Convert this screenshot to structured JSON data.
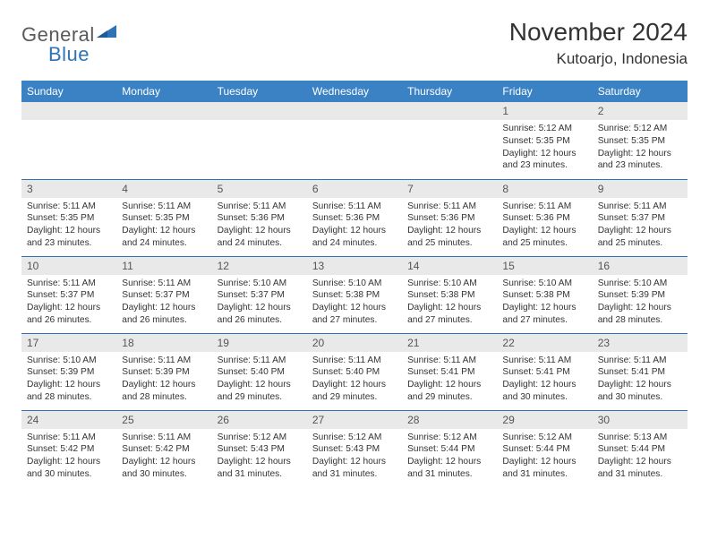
{
  "logo": {
    "text1": "General",
    "text2": "Blue",
    "triangle_color": "#2e74b5"
  },
  "title": "November 2024",
  "location": "Kutoarjo, Indonesia",
  "colors": {
    "header_bg": "#3b82c4",
    "header_fg": "#ffffff",
    "daynum_bg": "#e9e9e9",
    "rule": "#2e74b5"
  },
  "day_headers": [
    "Sunday",
    "Monday",
    "Tuesday",
    "Wednesday",
    "Thursday",
    "Friday",
    "Saturday"
  ],
  "weeks": [
    [
      null,
      null,
      null,
      null,
      null,
      {
        "n": "1",
        "sr": "5:12 AM",
        "ss": "5:35 PM",
        "dl": "12 hours and 23 minutes."
      },
      {
        "n": "2",
        "sr": "5:12 AM",
        "ss": "5:35 PM",
        "dl": "12 hours and 23 minutes."
      }
    ],
    [
      {
        "n": "3",
        "sr": "5:11 AM",
        "ss": "5:35 PM",
        "dl": "12 hours and 23 minutes."
      },
      {
        "n": "4",
        "sr": "5:11 AM",
        "ss": "5:35 PM",
        "dl": "12 hours and 24 minutes."
      },
      {
        "n": "5",
        "sr": "5:11 AM",
        "ss": "5:36 PM",
        "dl": "12 hours and 24 minutes."
      },
      {
        "n": "6",
        "sr": "5:11 AM",
        "ss": "5:36 PM",
        "dl": "12 hours and 24 minutes."
      },
      {
        "n": "7",
        "sr": "5:11 AM",
        "ss": "5:36 PM",
        "dl": "12 hours and 25 minutes."
      },
      {
        "n": "8",
        "sr": "5:11 AM",
        "ss": "5:36 PM",
        "dl": "12 hours and 25 minutes."
      },
      {
        "n": "9",
        "sr": "5:11 AM",
        "ss": "5:37 PM",
        "dl": "12 hours and 25 minutes."
      }
    ],
    [
      {
        "n": "10",
        "sr": "5:11 AM",
        "ss": "5:37 PM",
        "dl": "12 hours and 26 minutes."
      },
      {
        "n": "11",
        "sr": "5:11 AM",
        "ss": "5:37 PM",
        "dl": "12 hours and 26 minutes."
      },
      {
        "n": "12",
        "sr": "5:10 AM",
        "ss": "5:37 PM",
        "dl": "12 hours and 26 minutes."
      },
      {
        "n": "13",
        "sr": "5:10 AM",
        "ss": "5:38 PM",
        "dl": "12 hours and 27 minutes."
      },
      {
        "n": "14",
        "sr": "5:10 AM",
        "ss": "5:38 PM",
        "dl": "12 hours and 27 minutes."
      },
      {
        "n": "15",
        "sr": "5:10 AM",
        "ss": "5:38 PM",
        "dl": "12 hours and 27 minutes."
      },
      {
        "n": "16",
        "sr": "5:10 AM",
        "ss": "5:39 PM",
        "dl": "12 hours and 28 minutes."
      }
    ],
    [
      {
        "n": "17",
        "sr": "5:10 AM",
        "ss": "5:39 PM",
        "dl": "12 hours and 28 minutes."
      },
      {
        "n": "18",
        "sr": "5:11 AM",
        "ss": "5:39 PM",
        "dl": "12 hours and 28 minutes."
      },
      {
        "n": "19",
        "sr": "5:11 AM",
        "ss": "5:40 PM",
        "dl": "12 hours and 29 minutes."
      },
      {
        "n": "20",
        "sr": "5:11 AM",
        "ss": "5:40 PM",
        "dl": "12 hours and 29 minutes."
      },
      {
        "n": "21",
        "sr": "5:11 AM",
        "ss": "5:41 PM",
        "dl": "12 hours and 29 minutes."
      },
      {
        "n": "22",
        "sr": "5:11 AM",
        "ss": "5:41 PM",
        "dl": "12 hours and 30 minutes."
      },
      {
        "n": "23",
        "sr": "5:11 AM",
        "ss": "5:41 PM",
        "dl": "12 hours and 30 minutes."
      }
    ],
    [
      {
        "n": "24",
        "sr": "5:11 AM",
        "ss": "5:42 PM",
        "dl": "12 hours and 30 minutes."
      },
      {
        "n": "25",
        "sr": "5:11 AM",
        "ss": "5:42 PM",
        "dl": "12 hours and 30 minutes."
      },
      {
        "n": "26",
        "sr": "5:12 AM",
        "ss": "5:43 PM",
        "dl": "12 hours and 31 minutes."
      },
      {
        "n": "27",
        "sr": "5:12 AM",
        "ss": "5:43 PM",
        "dl": "12 hours and 31 minutes."
      },
      {
        "n": "28",
        "sr": "5:12 AM",
        "ss": "5:44 PM",
        "dl": "12 hours and 31 minutes."
      },
      {
        "n": "29",
        "sr": "5:12 AM",
        "ss": "5:44 PM",
        "dl": "12 hours and 31 minutes."
      },
      {
        "n": "30",
        "sr": "5:13 AM",
        "ss": "5:44 PM",
        "dl": "12 hours and 31 minutes."
      }
    ]
  ],
  "labels": {
    "sunrise": "Sunrise:",
    "sunset": "Sunset:",
    "daylight": "Daylight:"
  }
}
